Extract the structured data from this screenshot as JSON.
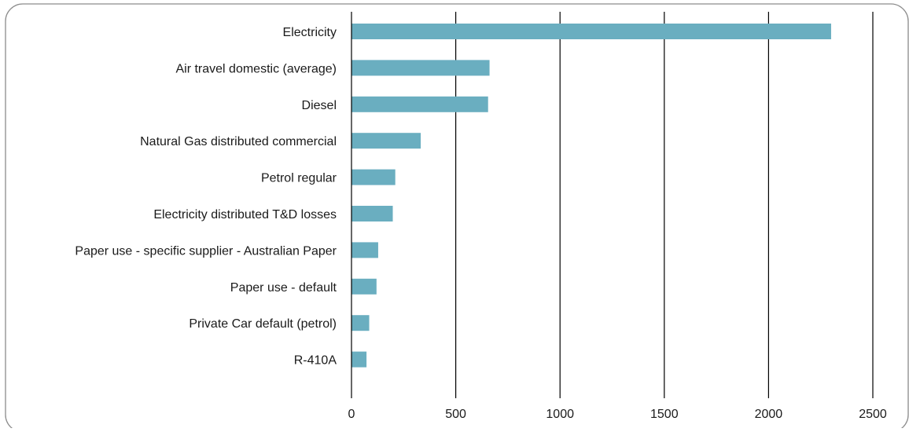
{
  "chart_data": {
    "type": "bar",
    "orientation": "horizontal",
    "title": "",
    "xlabel": "",
    "ylabel": "",
    "categories": [
      "Electricity",
      "Air travel domestic (average)",
      "Diesel",
      "Natural Gas distributed commercial",
      "Petrol regular",
      "Electricity distributed T&D losses",
      "Paper use - specific supplier - Australian Paper",
      "Paper use - default",
      "Private Car default (petrol)",
      "R-410A"
    ],
    "values": [
      2300,
      662,
      655,
      332,
      210,
      198,
      128,
      120,
      85,
      72
    ],
    "xlim": [
      0,
      2500
    ],
    "xticks": [
      0,
      500,
      1000,
      1500,
      2000,
      2500
    ],
    "grid": "vertical",
    "legend": "none",
    "bar_color": "#6aaec0",
    "grid_color": "#000000",
    "frame_color": "#8c8c8c"
  }
}
